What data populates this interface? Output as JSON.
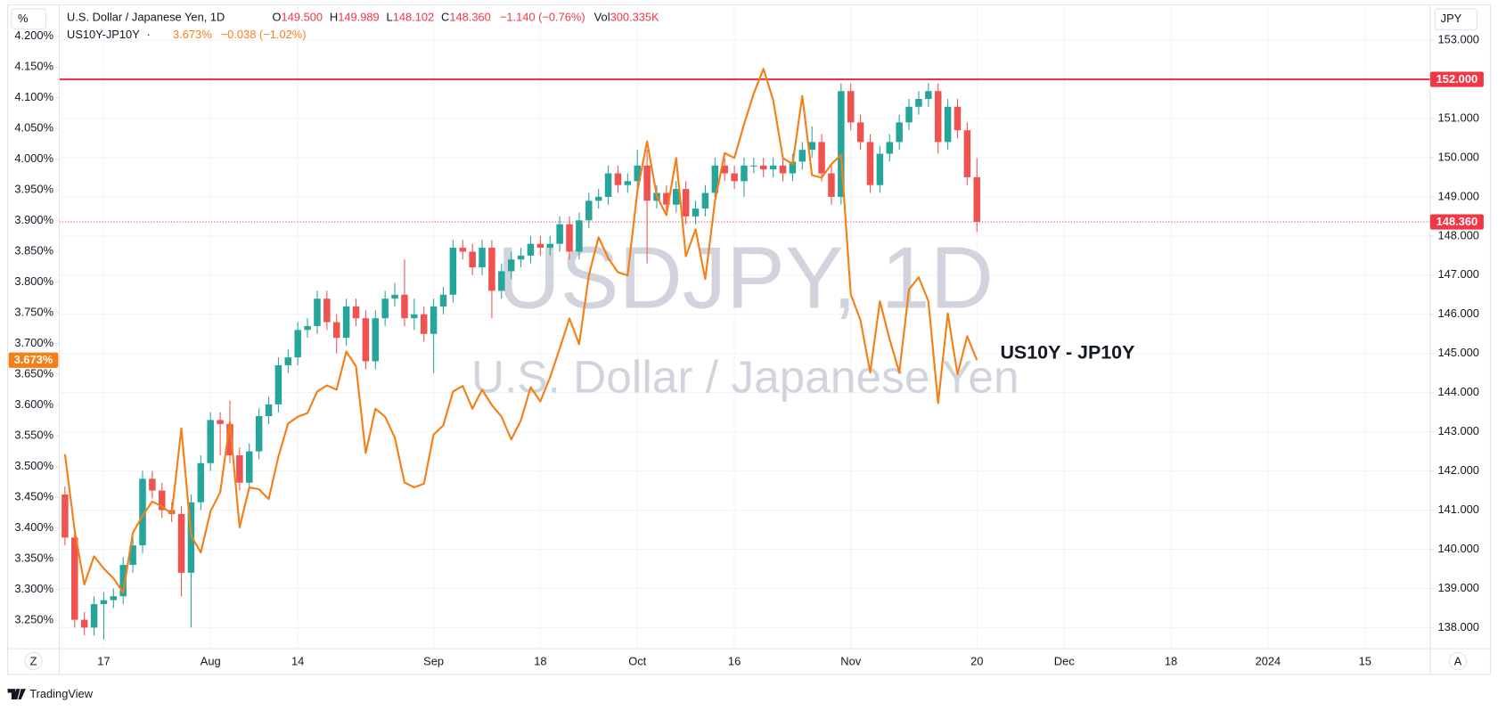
{
  "chart_data": {
    "type": "candlestick",
    "x": [
      "2023-07-11",
      "2023-07-12",
      "2023-07-13",
      "2023-07-14",
      "2023-07-17",
      "2023-07-18",
      "2023-07-19",
      "2023-07-20",
      "2023-07-21",
      "2023-07-24",
      "2023-07-25",
      "2023-07-26",
      "2023-07-27",
      "2023-07-28",
      "2023-07-31",
      "2023-08-01",
      "2023-08-02",
      "2023-08-03",
      "2023-08-04",
      "2023-08-07",
      "2023-08-08",
      "2023-08-09",
      "2023-08-10",
      "2023-08-11",
      "2023-08-14",
      "2023-08-15",
      "2023-08-16",
      "2023-08-17",
      "2023-08-18",
      "2023-08-21",
      "2023-08-22",
      "2023-08-23",
      "2023-08-24",
      "2023-08-25",
      "2023-08-28",
      "2023-08-29",
      "2023-08-30",
      "2023-08-31",
      "2023-09-01",
      "2023-09-04",
      "2023-09-05",
      "2023-09-06",
      "2023-09-07",
      "2023-09-08",
      "2023-09-11",
      "2023-09-12",
      "2023-09-13",
      "2023-09-14",
      "2023-09-15",
      "2023-09-18",
      "2023-09-19",
      "2023-09-20",
      "2023-09-21",
      "2023-09-22",
      "2023-09-25",
      "2023-09-26",
      "2023-09-27",
      "2023-09-28",
      "2023-09-29",
      "2023-10-02",
      "2023-10-03",
      "2023-10-04",
      "2023-10-05",
      "2023-10-06",
      "2023-10-09",
      "2023-10-10",
      "2023-10-11",
      "2023-10-12",
      "2023-10-13",
      "2023-10-16",
      "2023-10-17",
      "2023-10-18",
      "2023-10-19",
      "2023-10-20",
      "2023-10-23",
      "2023-10-24",
      "2023-10-25",
      "2023-10-26",
      "2023-10-27",
      "2023-10-30",
      "2023-10-31",
      "2023-11-01",
      "2023-11-02",
      "2023-11-03",
      "2023-11-06",
      "2023-11-07",
      "2023-11-08",
      "2023-11-09",
      "2023-11-10",
      "2023-11-13",
      "2023-11-14",
      "2023-11-15",
      "2023-11-16",
      "2023-11-17",
      "2023-11-20"
    ],
    "series": [
      {
        "name": "U.S. Dollar / Japanese Yen, 1D",
        "type": "candlestick",
        "up_color": "#26a69a",
        "down_color": "#ef5350",
        "open": [
          141.4,
          140.3,
          138.2,
          138.0,
          138.6,
          138.7,
          138.8,
          139.6,
          140.1,
          141.8,
          141.5,
          141.0,
          140.9,
          139.4,
          141.2,
          142.2,
          143.3,
          143.2,
          142.4,
          141.7,
          142.5,
          143.4,
          143.7,
          144.7,
          144.9,
          145.6,
          145.7,
          146.4,
          145.8,
          145.4,
          146.2,
          145.9,
          144.8,
          145.9,
          146.4,
          146.5,
          145.9,
          146.0,
          145.5,
          146.2,
          146.5,
          147.7,
          147.6,
          147.2,
          147.7,
          146.6,
          147.1,
          147.4,
          147.5,
          147.8,
          147.7,
          147.8,
          148.3,
          147.6,
          148.4,
          148.9,
          149.0,
          149.6,
          149.3,
          149.4,
          149.8,
          148.9,
          149.1,
          148.8,
          149.2,
          148.5,
          148.7,
          149.1,
          149.8,
          149.6,
          149.4,
          149.8,
          149.8,
          149.7,
          149.8,
          149.6,
          149.9,
          150.2,
          150.4,
          149.6,
          149.0,
          151.7,
          150.9,
          150.4,
          149.3,
          150.1,
          150.4,
          150.9,
          151.3,
          151.5,
          151.7,
          150.4,
          151.3,
          150.7,
          149.5
        ],
        "high": [
          141.6,
          140.5,
          138.4,
          138.8,
          138.9,
          139.0,
          139.8,
          140.3,
          142.0,
          142.0,
          141.7,
          141.2,
          141.1,
          141.4,
          142.4,
          143.5,
          143.5,
          143.8,
          142.6,
          142.7,
          143.6,
          143.9,
          144.9,
          145.1,
          145.8,
          145.9,
          146.6,
          146.6,
          146.0,
          146.4,
          146.4,
          146.1,
          146.1,
          146.6,
          146.8,
          147.4,
          146.4,
          146.2,
          146.4,
          146.7,
          147.9,
          147.9,
          147.8,
          147.9,
          147.9,
          147.3,
          147.6,
          147.7,
          148.0,
          148.0,
          148.0,
          148.5,
          148.5,
          148.6,
          149.1,
          149.2,
          149.8,
          149.8,
          149.6,
          150.2,
          150.2,
          149.3,
          149.3,
          149.4,
          149.4,
          148.9,
          149.3,
          150.0,
          150.0,
          149.8,
          150.0,
          150.0,
          150.0,
          150.0,
          150.0,
          150.1,
          150.4,
          150.8,
          150.6,
          149.8,
          151.9,
          151.9,
          151.1,
          150.6,
          150.3,
          150.6,
          151.1,
          151.5,
          151.7,
          151.9,
          151.9,
          151.5,
          151.5,
          150.9,
          149.989
        ],
        "low": [
          140.1,
          138.0,
          137.8,
          137.8,
          137.7,
          138.5,
          138.6,
          139.4,
          139.9,
          141.3,
          140.8,
          140.7,
          138.8,
          138.0,
          141.0,
          142.0,
          142.4,
          142.2,
          141.5,
          141.5,
          142.3,
          143.2,
          143.5,
          144.5,
          144.7,
          145.4,
          145.5,
          145.6,
          145.0,
          145.2,
          145.7,
          144.6,
          144.6,
          145.7,
          146.2,
          145.7,
          145.6,
          145.3,
          144.5,
          146.0,
          146.3,
          147.4,
          147.0,
          147.0,
          145.9,
          146.4,
          146.9,
          147.2,
          147.3,
          147.5,
          147.5,
          147.6,
          147.4,
          147.4,
          148.2,
          148.7,
          148.8,
          149.1,
          149.1,
          149.2,
          147.3,
          148.7,
          148.6,
          148.6,
          148.3,
          148.3,
          148.5,
          148.9,
          149.4,
          149.2,
          149.0,
          149.6,
          149.5,
          149.5,
          149.4,
          149.4,
          149.7,
          150.0,
          149.4,
          148.8,
          148.8,
          150.7,
          150.2,
          149.1,
          149.1,
          149.9,
          150.2,
          150.7,
          151.1,
          151.3,
          150.1,
          150.2,
          150.5,
          149.3,
          148.102
        ],
        "close": [
          140.3,
          138.2,
          138.0,
          138.6,
          138.7,
          138.8,
          139.6,
          140.1,
          141.8,
          141.5,
          141.0,
          140.9,
          139.4,
          141.2,
          142.2,
          143.3,
          143.2,
          142.4,
          141.7,
          142.5,
          143.4,
          143.7,
          144.7,
          144.9,
          145.6,
          145.7,
          146.4,
          145.8,
          145.4,
          146.2,
          145.9,
          144.8,
          145.9,
          146.4,
          146.5,
          145.9,
          146.0,
          145.5,
          146.2,
          146.5,
          147.7,
          147.6,
          147.2,
          147.7,
          146.6,
          147.1,
          147.4,
          147.5,
          147.8,
          147.7,
          147.8,
          148.3,
          147.6,
          148.4,
          148.9,
          149.0,
          149.6,
          149.3,
          149.4,
          149.8,
          148.9,
          149.1,
          148.8,
          149.2,
          148.5,
          148.7,
          149.1,
          149.8,
          149.6,
          149.4,
          149.8,
          149.8,
          149.7,
          149.8,
          149.6,
          149.9,
          150.2,
          150.4,
          149.6,
          149.0,
          151.7,
          150.9,
          150.4,
          149.3,
          150.1,
          150.4,
          150.9,
          151.3,
          151.5,
          151.7,
          150.4,
          151.3,
          150.7,
          149.5,
          148.36
        ]
      },
      {
        "name": "US10Y-JP10Y",
        "type": "line",
        "color": "#f57f17",
        "axis": "y2",
        "values": [
          3.52,
          3.396,
          3.308,
          3.354,
          3.334,
          3.318,
          3.295,
          3.392,
          3.42,
          3.443,
          3.435,
          3.423,
          3.562,
          3.388,
          3.36,
          3.427,
          3.458,
          3.572,
          3.401,
          3.466,
          3.463,
          3.447,
          3.516,
          3.57,
          3.581,
          3.587,
          3.622,
          3.632,
          3.625,
          3.687,
          3.663,
          3.522,
          3.594,
          3.581,
          3.547,
          3.474,
          3.466,
          3.472,
          3.552,
          3.567,
          3.622,
          3.631,
          3.594,
          3.625,
          3.6,
          3.581,
          3.544,
          3.575,
          3.629,
          3.606,
          3.645,
          3.692,
          3.741,
          3.699,
          3.811,
          3.873,
          3.839,
          3.816,
          3.811,
          3.948,
          4.029,
          3.94,
          3.909,
          4.002,
          3.842,
          3.886,
          3.805,
          3.932,
          4.01,
          4.002,
          4.057,
          4.107,
          4.147,
          4.096,
          4.002,
          3.992,
          4.103,
          3.974,
          3.97,
          3.992,
          4.007,
          3.78,
          3.738,
          3.653,
          3.769,
          3.707,
          3.653,
          3.788,
          3.808,
          3.769,
          3.603,
          3.749,
          3.65,
          3.712,
          3.673
        ]
      }
    ],
    "ylim": [
      137.46,
      153.9
    ],
    "yticks": [
      {
        "value": 138,
        "label": "138.000"
      },
      {
        "value": 139,
        "label": "139.000"
      },
      {
        "value": 140,
        "label": "140.000"
      },
      {
        "value": 141,
        "label": "141.000"
      },
      {
        "value": 142,
        "label": "142.000"
      },
      {
        "value": 143,
        "label": "143.000"
      },
      {
        "value": 144,
        "label": "144.000"
      },
      {
        "value": 145,
        "label": "145.000"
      },
      {
        "value": 146,
        "label": "146.000"
      },
      {
        "value": 147,
        "label": "147.000"
      },
      {
        "value": 148,
        "label": "148.000"
      },
      {
        "value": 149,
        "label": "149.000"
      },
      {
        "value": 150,
        "label": "150.000"
      },
      {
        "value": 151,
        "label": "151.000"
      },
      {
        "value": 152,
        "label": "152.000"
      },
      {
        "value": 153,
        "label": "153.000"
      }
    ],
    "y2lim": [
      3.2035,
      4.251
    ],
    "y2ticks": [
      {
        "value": 3.25,
        "label": "3.250%"
      },
      {
        "value": 3.3,
        "label": "3.300%"
      },
      {
        "value": 3.35,
        "label": "3.350%"
      },
      {
        "value": 3.4,
        "label": "3.400%"
      },
      {
        "value": 3.45,
        "label": "3.450%"
      },
      {
        "value": 3.5,
        "label": "3.500%"
      },
      {
        "value": 3.55,
        "label": "3.550%"
      },
      {
        "value": 3.6,
        "label": "3.600%"
      },
      {
        "value": 3.65,
        "label": "3.650%"
      },
      {
        "value": 3.7,
        "label": "3.700%"
      },
      {
        "value": 3.75,
        "label": "3.750%"
      },
      {
        "value": 3.8,
        "label": "3.800%"
      },
      {
        "value": 3.85,
        "label": "3.850%"
      },
      {
        "value": 3.9,
        "label": "3.900%"
      },
      {
        "value": 3.95,
        "label": "3.950%"
      },
      {
        "value": 4.0,
        "label": "4.000%"
      },
      {
        "value": 4.05,
        "label": "4.050%"
      },
      {
        "value": 4.1,
        "label": "4.100%"
      },
      {
        "value": 4.15,
        "label": "4.150%"
      },
      {
        "value": 4.2,
        "label": "4.200%"
      }
    ],
    "xticks": [
      {
        "value": "2023-07-17",
        "label": "17"
      },
      {
        "value": "2023-08-01",
        "label": "Aug"
      },
      {
        "value": "2023-08-14",
        "label": "14"
      },
      {
        "value": "2023-09-01",
        "label": "Sep"
      },
      {
        "value": "2023-09-18",
        "label": "18"
      },
      {
        "value": "2023-10-02",
        "label": "Oct"
      },
      {
        "value": "2023-10-16",
        "label": "16"
      },
      {
        "value": "2023-11-01",
        "label": "Nov"
      },
      {
        "value": "2023-11-20",
        "label": "20"
      },
      {
        "value": "2023-12-01",
        "label": "Dec"
      },
      {
        "value": "2023-12-18",
        "label": "18"
      },
      {
        "value": "2024-01-01",
        "label": "2024"
      },
      {
        "value": "2024-01-15",
        "label": "15"
      }
    ],
    "grid": true,
    "y_unit": "JPY",
    "y2_unit": "%",
    "hline": {
      "value": 152,
      "label": "152.000",
      "color": "#f23645"
    },
    "last_price": {
      "value": 148.36,
      "label": "148.360",
      "color": "#f23645"
    },
    "last_value_y2": {
      "value": 3.673,
      "label": "3.673%",
      "color": "#f57f17"
    },
    "annotation": "US10Y - JP10Y",
    "watermark": [
      "USDJPY, 1D",
      "U.S. Dollar / Japanese Yen"
    ],
    "legend": {
      "ohlc": [
        {
          "label": "O",
          "value": "149.500"
        },
        {
          "label": "H",
          "value": "149.989"
        },
        {
          "label": "L",
          "value": "148.102"
        },
        {
          "label": "C",
          "value": "148.360"
        }
      ],
      "change": "−1.140 (−0.76%)",
      "vol_label": "Vol",
      "vol": "300.335K",
      "separator": "·",
      "spread_value": "3.673%",
      "spread_change": "−0.038 (−1.02%)"
    },
    "buttons": [
      "Z",
      "A"
    ],
    "brand": "TradingView"
  }
}
